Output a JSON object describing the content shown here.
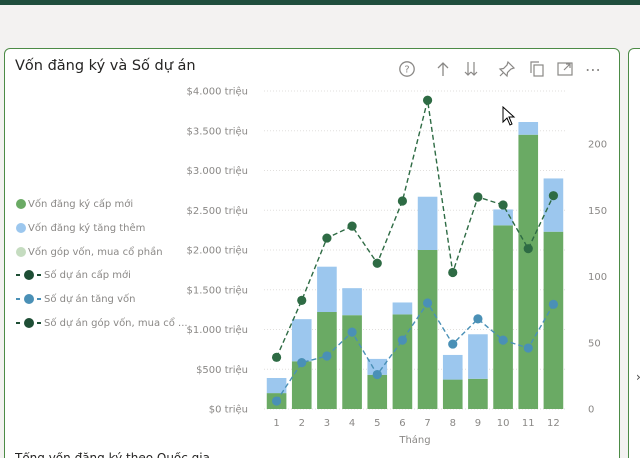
{
  "card": {
    "title": "Vốn đăng ký và Số dự án",
    "footer_peek": "Tổng vốn đăng ký theo Quốc gia"
  },
  "toolbar": {
    "icons": [
      "help-icon",
      "drill-up-icon",
      "drill-down-icon",
      "pin-icon",
      "copy-icon",
      "focus-mode-icon",
      "more-options-icon"
    ],
    "help_glyph": "?",
    "more_glyph": "⋯"
  },
  "legend": {
    "items": [
      {
        "label": "Vốn đăng ký cấp mới",
        "kind": "bar",
        "color": "#6aaa64"
      },
      {
        "label": "Vốn đăng ký tăng thêm",
        "kind": "bar",
        "color": "#9cc7ee"
      },
      {
        "label": "Vốn góp vốn, mua cổ phần",
        "kind": "bar",
        "color": "#c5dcc0"
      },
      {
        "label": "Số dự án cấp mới",
        "kind": "line",
        "color": "#1e4e35"
      },
      {
        "label": "Số dự án tăng vốn",
        "kind": "line",
        "color": "#4a90b6"
      },
      {
        "label": "Số dự án góp vốn, mua cổ ...",
        "kind": "line",
        "color": "#1e4e35"
      }
    ]
  },
  "colors": {
    "card_border": "#4c8b46",
    "top_bar": "#1f4e3d",
    "bar_new": "#6aaa64",
    "bar_add": "#9cc7ee",
    "line_new": "#2e6b44",
    "line_add": "#4a90b6"
  },
  "chart_data": {
    "type": "bar",
    "x_label": "Tháng",
    "categories": [
      "1",
      "2",
      "3",
      "4",
      "5",
      "6",
      "7",
      "8",
      "9",
      "10",
      "11",
      "12"
    ],
    "y_left": {
      "ticks": [
        0,
        500,
        1000,
        1500,
        2000,
        2500,
        3000,
        3500,
        4000
      ],
      "tick_labels": [
        "$0 triệu",
        "$500 triệu",
        "$1.000 triệu",
        "$1.500 triệu",
        "$2.000 triệu",
        "$2.500 triệu",
        "$3.000 triệu",
        "$3.500 triệu",
        "$4.000 triệu"
      ],
      "range": [
        0,
        4000
      ]
    },
    "y_right": {
      "ticks": [
        0,
        50,
        100,
        150,
        200
      ],
      "tick_labels": [
        "0",
        "50",
        "100",
        "150",
        "200"
      ],
      "range": [
        0,
        240
      ]
    },
    "series": [
      {
        "name": "Vốn đăng ký cấp mới",
        "kind": "stacked-bar",
        "axis": "left",
        "values": [
          200,
          600,
          1220,
          1180,
          430,
          1190,
          2000,
          370,
          380,
          2310,
          3450,
          2230
        ]
      },
      {
        "name": "Vốn đăng ký tăng thêm",
        "kind": "stacked-bar",
        "axis": "left",
        "values": [
          190,
          530,
          570,
          340,
          200,
          150,
          670,
          310,
          560,
          200,
          160,
          670
        ]
      },
      {
        "name": "Số dự án cấp mới",
        "kind": "line",
        "axis": "right",
        "values": [
          39,
          82,
          129,
          138,
          110,
          157,
          233,
          103,
          160,
          154,
          121,
          161
        ]
      },
      {
        "name": "Số dự án tăng vốn",
        "kind": "line",
        "axis": "right",
        "values": [
          6,
          35,
          40,
          58,
          26,
          52,
          80,
          49,
          68,
          52,
          46,
          79
        ]
      }
    ]
  }
}
